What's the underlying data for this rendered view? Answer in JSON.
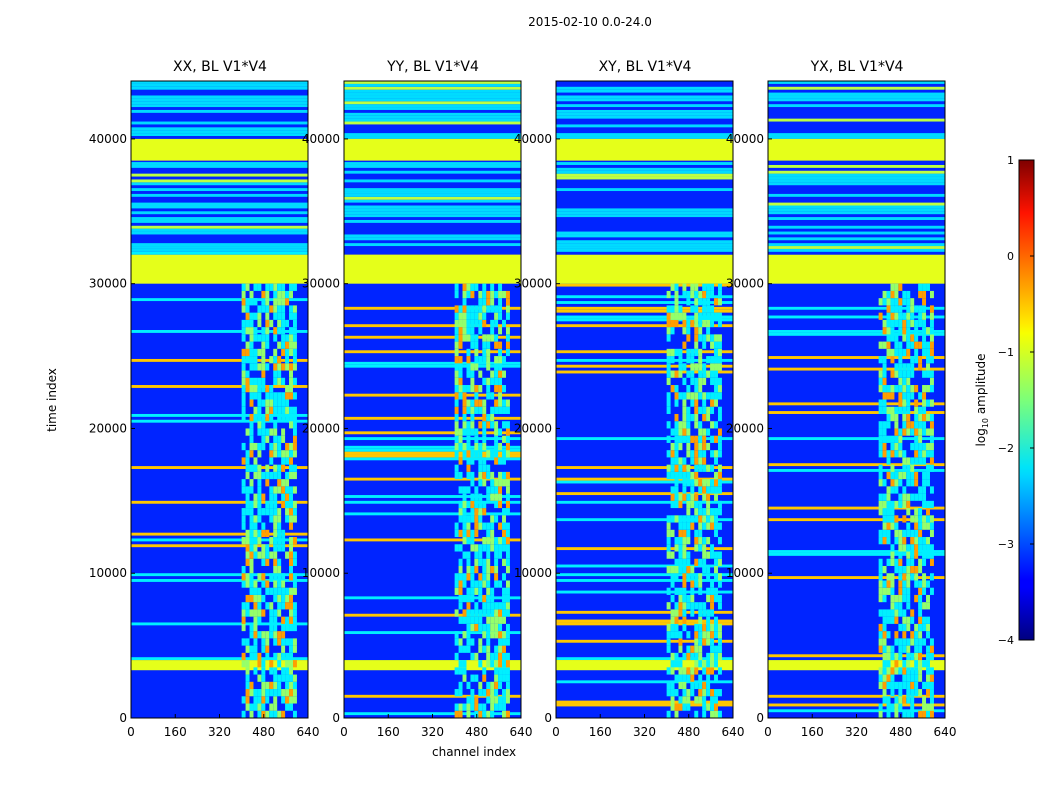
{
  "chart_data": {
    "type": "heatmap",
    "title": "2015-02-10 0.0-24.0",
    "xlabel": "channel index",
    "ylabel": "time index",
    "xlim": [
      0,
      640
    ],
    "ylim": [
      0,
      44000
    ],
    "xticks": [
      "0",
      "160",
      "320",
      "480",
      "640"
    ],
    "yticks": [
      "0",
      "10000",
      "20000",
      "30000",
      "40000"
    ],
    "colorbar": {
      "label": "log10 amplitude",
      "label_main": "log",
      "label_sub": "10",
      "label_rest": " amplitude",
      "range": [
        -4,
        1
      ],
      "ticks": [
        "−4",
        "−3",
        "−2",
        "−1",
        "0",
        "1"
      ],
      "colormap": "jet"
    },
    "panels": [
      {
        "title": "XX, BL V1*V4"
      },
      {
        "title": "YY, BL V1*V4"
      },
      {
        "title": "XY, BL V1*V4"
      },
      {
        "title": "YX, BL V1*V4"
      }
    ],
    "features": {
      "saturated_blocks_time": [
        [
          30000,
          32000
        ],
        [
          38500,
          40000
        ],
        [
          3300,
          4000
        ]
      ],
      "rfi_channel_band": [
        400,
        600
      ],
      "background_level": -3.2
    }
  }
}
